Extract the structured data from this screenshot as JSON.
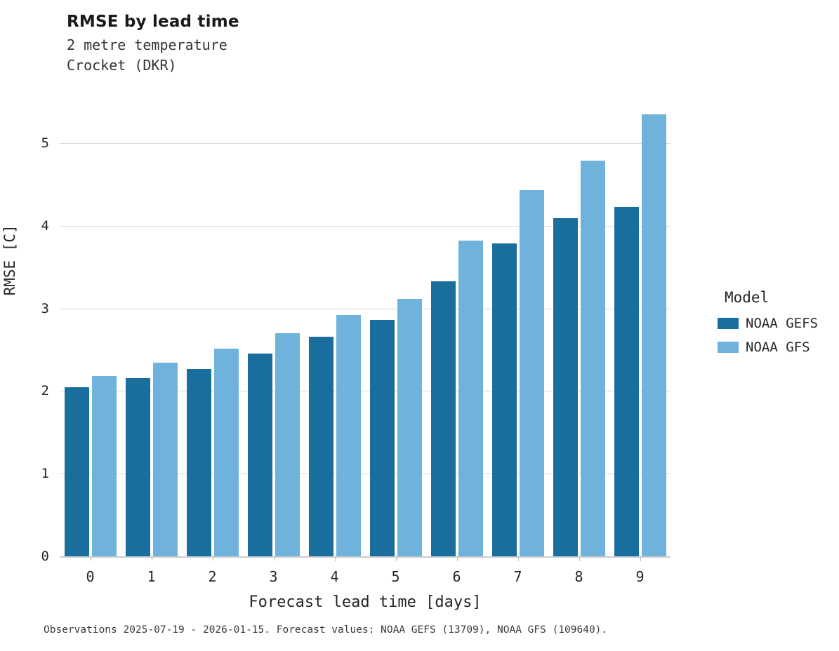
{
  "header": {
    "title": "RMSE by lead time",
    "subtitle_line1": "2 metre temperature",
    "subtitle_line2": "Crocket (DKR)"
  },
  "colors": {
    "gefs": "#1a6e9e",
    "gfs": "#6fb2dc",
    "gridline": "#d9d9d9",
    "baseline": "#c9cdd1"
  },
  "legend": {
    "title": "Model",
    "entries": [
      {
        "label": "NOAA GEFS",
        "color": "#1a6e9e"
      },
      {
        "label": "NOAA GFS",
        "color": "#6fb2dc"
      }
    ]
  },
  "footer": {
    "note": "Observations 2025-07-19 - 2026-01-15. Forecast values: NOAA GEFS (13709), NOAA GFS (109640)."
  },
  "chart_data": {
    "type": "bar",
    "title": "RMSE by lead time",
    "subtitle": "2 metre temperature, Crocket (DKR)",
    "xlabel": "Forecast lead time [days]",
    "ylabel": "RMSE [C]",
    "categories": [
      "0",
      "1",
      "2",
      "3",
      "4",
      "5",
      "6",
      "7",
      "8",
      "9"
    ],
    "series": [
      {
        "name": "NOAA GEFS",
        "color": "#1a6e9e",
        "values": [
          2.05,
          2.16,
          2.27,
          2.45,
          2.66,
          2.86,
          3.33,
          3.79,
          4.09,
          4.23
        ]
      },
      {
        "name": "NOAA GFS",
        "color": "#6fb2dc",
        "values": [
          2.18,
          2.34,
          2.51,
          2.7,
          2.92,
          3.12,
          3.82,
          4.43,
          4.79,
          5.35
        ]
      }
    ],
    "yticks": [
      0,
      1,
      2,
      3,
      4,
      5
    ],
    "ylim": [
      0,
      5.63
    ],
    "grid": true,
    "legend_position": "right"
  }
}
